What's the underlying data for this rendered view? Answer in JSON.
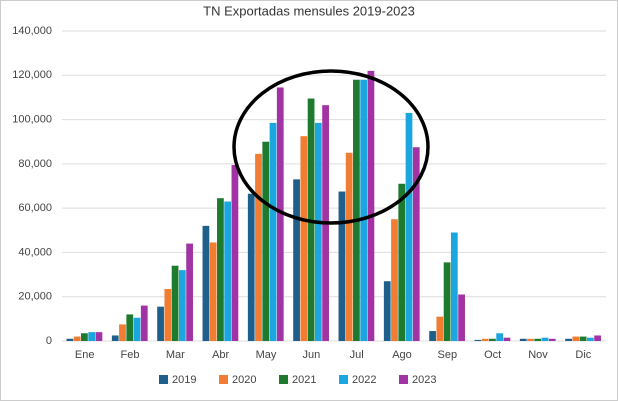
{
  "chart_data": {
    "type": "bar",
    "title": "TN Exportadas mensules 2019-2023",
    "categories": [
      "Ene",
      "Feb",
      "Mar",
      "Abr",
      "May",
      "Jun",
      "Jul",
      "Ago",
      "Sep",
      "Oct",
      "Nov",
      "Dic"
    ],
    "series": [
      {
        "name": "2019",
        "color": "#1f5f8b",
        "values": [
          1000,
          2500,
          15500,
          52000,
          66500,
          73000,
          67500,
          27000,
          4500,
          500,
          1000,
          1000
        ]
      },
      {
        "name": "2020",
        "color": "#f07d32",
        "values": [
          2000,
          7500,
          23500,
          44500,
          84500,
          92500,
          85000,
          55000,
          11000,
          1000,
          1000,
          2000
        ]
      },
      {
        "name": "2021",
        "color": "#1e7a2e",
        "values": [
          3500,
          12000,
          34000,
          64500,
          90000,
          109500,
          118000,
          71000,
          35500,
          1000,
          1000,
          2000
        ]
      },
      {
        "name": "2022",
        "color": "#1ba6e0",
        "values": [
          4000,
          10500,
          32000,
          63000,
          98500,
          98500,
          118000,
          103000,
          49000,
          3500,
          1500,
          1500
        ]
      },
      {
        "name": "2023",
        "color": "#a233a5",
        "values": [
          4000,
          16000,
          44000,
          79500,
          114500,
          106500,
          122000,
          87500,
          21000,
          1500,
          1000,
          2500
        ]
      }
    ],
    "ylim": [
      0,
      140000
    ],
    "yticks": [
      0,
      {
        "value": 20000,
        "label": "20,000"
      },
      {
        "value": 40000,
        "label": "40,000"
      },
      {
        "value": 60000,
        "label": "60,000"
      },
      {
        "value": 80000,
        "label": "80,000"
      },
      {
        "value": 100000,
        "label": "100,000"
      },
      {
        "value": 120000,
        "label": "120,000"
      },
      {
        "value": 140000,
        "label": "140,000"
      }
    ],
    "grid": true,
    "legend": "bottom"
  }
}
